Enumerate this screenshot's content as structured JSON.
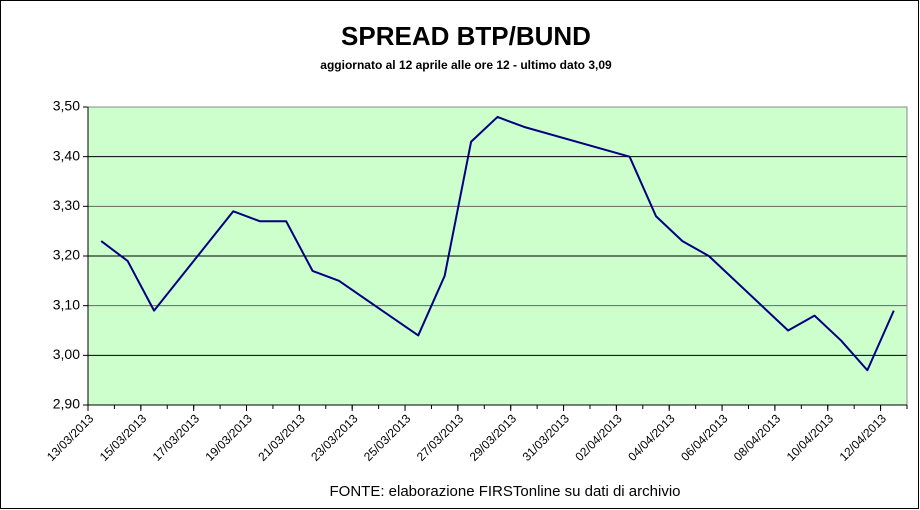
{
  "chart_data": {
    "type": "line",
    "title": "SPREAD  BTP/BUND",
    "subtitle": "aggiornato al 12 aprile alle ore 12 - ultimo dato 3,09",
    "source": "FONTE: elaborazione FIRSTonline su dati di archivio",
    "x": [
      "13/03/2013",
      "14/03/2013",
      "15/03/2013",
      "18/03/2013",
      "19/03/2013",
      "20/03/2013",
      "21/03/2013",
      "22/03/2013",
      "25/03/2013",
      "26/03/2013",
      "27/03/2013",
      "28/03/2013",
      "29/03/2013",
      "02/04/2013",
      "03/04/2013",
      "04/04/2013",
      "05/04/2013",
      "08/04/2013",
      "09/04/2013",
      "10/04/2013",
      "11/04/2013",
      "12/04/2013"
    ],
    "series": [
      {
        "name": "Spread",
        "color": "#000080",
        "values": [
          3.23,
          3.19,
          3.09,
          3.29,
          3.27,
          3.27,
          3.17,
          3.15,
          3.04,
          3.16,
          3.43,
          3.48,
          3.46,
          3.4,
          3.28,
          3.23,
          3.2,
          3.05,
          3.08,
          3.03,
          2.97,
          3.09
        ]
      }
    ],
    "xticks": [
      "13/03/2013",
      "15/03/2013",
      "17/03/2013",
      "19/03/2013",
      "21/03/2013",
      "23/03/2013",
      "25/03/2013",
      "27/03/2013",
      "29/03/2013",
      "31/03/2013",
      "02/04/2013",
      "04/04/2013",
      "06/04/2013",
      "08/04/2013",
      "10/04/2013",
      "12/04/2013"
    ],
    "ylim": [
      2.9,
      3.5
    ],
    "yticks": [
      {
        "value": 2.9,
        "label": "2,90"
      },
      {
        "value": 3.0,
        "label": "3,00"
      },
      {
        "value": 3.1,
        "label": "3,10"
      },
      {
        "value": 3.2,
        "label": "3,20"
      },
      {
        "value": 3.3,
        "label": "3,30"
      },
      {
        "value": 3.4,
        "label": "3,40"
      },
      {
        "value": 3.5,
        "label": "3,50"
      }
    ],
    "grid": true,
    "plot_background": "#ccffcc"
  }
}
